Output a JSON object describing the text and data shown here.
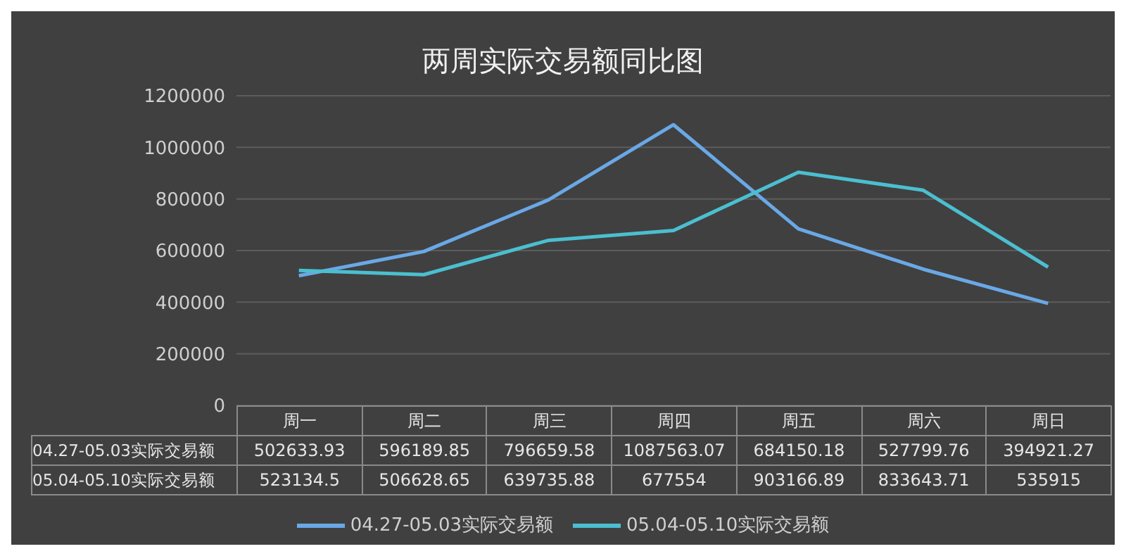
{
  "chart_data": {
    "type": "line",
    "title": "两周实际交易额同比图",
    "categories": [
      "周一",
      "周二",
      "周三",
      "周四",
      "周五",
      "周六",
      "周日"
    ],
    "series": [
      {
        "name": "04.27-05.03实际交易额",
        "color": "#6aa8e6",
        "values": [
          502633.93,
          596189.85,
          796659.58,
          1087563.07,
          684150.18,
          527799.76,
          394921.27
        ]
      },
      {
        "name": "05.04-05.10实际交易额",
        "color": "#4bbfd0",
        "values": [
          523134.5,
          506628.65,
          639735.88,
          677554,
          903166.89,
          833643.71,
          535915
        ]
      }
    ],
    "ylim": [
      0,
      1200000
    ],
    "yticks": [
      0,
      200000,
      400000,
      600000,
      800000,
      1000000,
      1200000
    ],
    "grid": "y",
    "legend": "bottom",
    "data_labels": true,
    "marker": "none",
    "line_style": "solid"
  }
}
